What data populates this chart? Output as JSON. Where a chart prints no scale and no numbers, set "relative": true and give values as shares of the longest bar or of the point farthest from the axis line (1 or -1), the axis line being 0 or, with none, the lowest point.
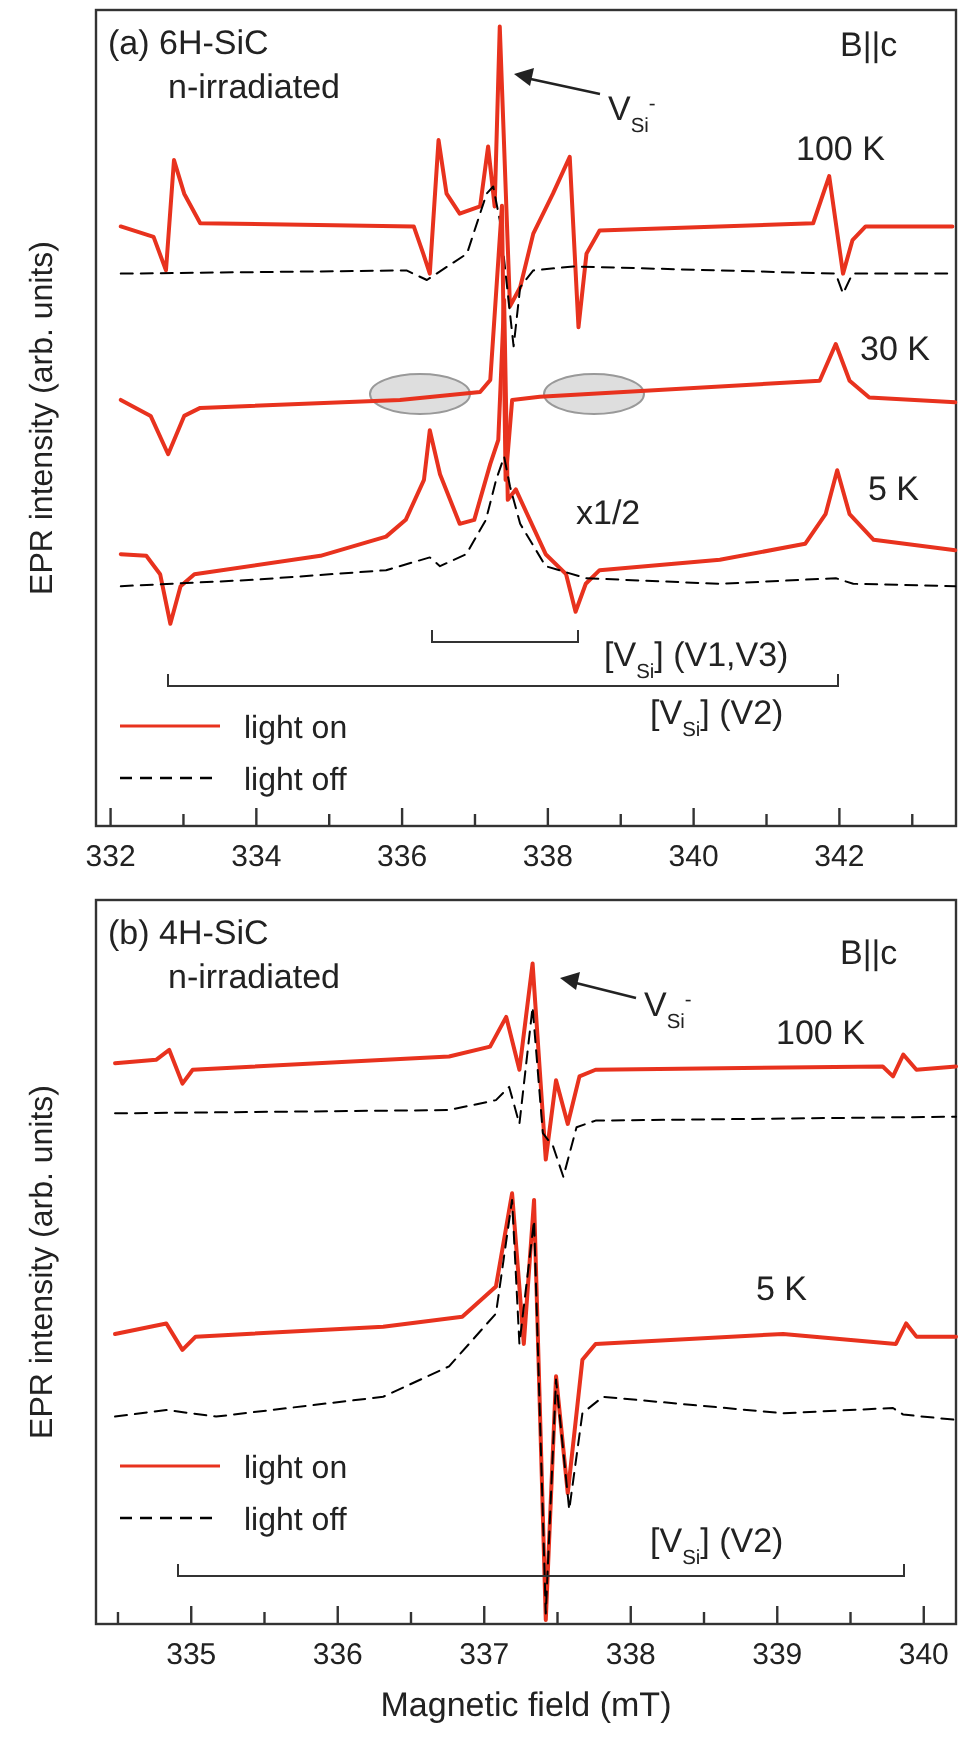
{
  "chart_data": [
    {
      "type": "line",
      "relative": true,
      "title": "(a) 6H-SiC n-irradiated",
      "ylabel": "EPR intensity (arb. units)",
      "legend": "bottom left",
      "xlim": [
        331.8,
        343.6
      ],
      "xticks": [
        332,
        {
          "value": 333,
          "label": null
        },
        334,
        {
          "value": 335,
          "label": null
        },
        336,
        {
          "value": 337,
          "label": null
        },
        338,
        {
          "value": 339,
          "label": null
        },
        340,
        {
          "value": 341,
          "label": null
        },
        342,
        {
          "value": 343,
          "label": null
        }
      ],
      "annotations": [
        "V$_{Si}$$^{-}$",
        "B||c",
        "100 K",
        "30 K",
        "5 K",
        "x1/2",
        "[V$_{Si}$] (V1,V3)",
        "[V$_{Si}$] (V2)"
      ],
      "series": [
        {
          "name": "light on",
          "color": "#e8321e",
          "line_style": "solid",
          "x": [
            332.14,
            332.59,
            332.76,
            332.87,
            333.01,
            333.23,
            336.16,
            336.29,
            336.38,
            336.5,
            336.61,
            336.79,
            337.07,
            337.18,
            337.27,
            337.34,
            337.48,
            337.62,
            337.8,
            338.07,
            338.3,
            338.42,
            338.53,
            338.71,
            341.64,
            341.86,
            342.05,
            342.18,
            342.36,
            343.55
          ],
          "values": [
            0.75,
            0.737,
            0.695,
            0.833,
            0.791,
            0.754,
            0.75,
            0.716,
            0.691,
            0.858,
            0.791,
            0.766,
            0.775,
            0.85,
            0.775,
            1.0,
            0.65,
            0.674,
            0.741,
            0.791,
            0.837,
            0.624,
            0.716,
            0.745,
            0.754,
            0.813,
            0.691,
            0.733,
            0.75,
            0.75
          ]
        },
        {
          "name": "light off",
          "color": "#000000",
          "line_style": "dashed",
          "x": [
            332.14,
            336.06,
            336.34,
            336.89,
            337.16,
            337.25,
            337.34,
            337.53,
            337.62,
            337.8,
            338.35,
            341.95,
            342.05,
            342.18,
            343.55
          ],
          "values": [
            0.691,
            0.695,
            0.683,
            0.716,
            0.791,
            0.8,
            0.758,
            0.6,
            0.674,
            0.695,
            0.7,
            0.691,
            0.666,
            0.691,
            0.691
          ]
        },
        {
          "color": "#e8321e",
          "line_style": "solid",
          "x": [
            332.14,
            332.55,
            332.79,
            333.01,
            333.23,
            335.97,
            337.07,
            337.21,
            337.37,
            337.42,
            337.51,
            337.89,
            341.73,
            341.95,
            342.14,
            342.41,
            343.59
          ],
          "values": [
            0.533,
            0.513,
            0.465,
            0.513,
            0.523,
            0.533,
            0.543,
            0.558,
            0.776,
            0.433,
            0.533,
            0.537,
            0.557,
            0.603,
            0.557,
            0.536,
            0.53
          ]
        },
        {
          "color": "#e8321e",
          "line_style": "solid",
          "x": [
            332.14,
            332.49,
            332.68,
            332.82,
            332.96,
            333.15,
            334.88,
            335.78,
            336.05,
            336.3,
            336.38,
            336.52,
            336.79,
            336.99,
            337.21,
            337.32,
            337.4,
            337.45,
            337.56,
            337.97,
            338.25,
            338.38,
            338.52,
            338.71,
            340.36,
            341.53,
            341.81,
            341.97,
            342.14,
            342.47,
            343.59
          ],
          "values": [
            0.34,
            0.338,
            0.315,
            0.253,
            0.3,
            0.315,
            0.338,
            0.362,
            0.383,
            0.433,
            0.495,
            0.44,
            0.378,
            0.383,
            0.453,
            0.483,
            0.658,
            0.408,
            0.421,
            0.34,
            0.315,
            0.268,
            0.303,
            0.32,
            0.333,
            0.353,
            0.39,
            0.445,
            0.39,
            0.358,
            0.345
          ]
        },
        {
          "color": "#000000",
          "line_style": "dashed",
          "x": [
            332.14,
            333.97,
            335.78,
            336.38,
            336.52,
            336.88,
            337.15,
            337.29,
            337.4,
            337.48,
            337.62,
            337.97,
            338.52,
            340.36,
            341.95,
            342.19,
            343.59
          ],
          "values": [
            0.3,
            0.308,
            0.32,
            0.336,
            0.325,
            0.34,
            0.383,
            0.433,
            0.462,
            0.425,
            0.378,
            0.325,
            0.31,
            0.303,
            0.31,
            0.303,
            0.3
          ]
        }
      ]
    },
    {
      "type": "line",
      "relative": true,
      "title": "(b) 4H-SiC n-irradiated",
      "ylabel": "EPR intensity (arb. units)",
      "xlabel": "Magnetic field (mT)",
      "legend": "bottom left",
      "xlim": [
        334.35,
        340.22
      ],
      "xticks": [
        {
          "value": 334.5,
          "label": null
        },
        335,
        {
          "value": 335.5,
          "label": null
        },
        336,
        {
          "value": 336.5,
          "label": null
        },
        337,
        {
          "value": 337.5,
          "label": null
        },
        338,
        {
          "value": 338.5,
          "label": null
        },
        339,
        {
          "value": 339.5,
          "label": null
        },
        340
      ],
      "annotations": [
        "V$_{Si}$$^{-}$",
        "B||c",
        "100 K",
        "5 K",
        "[V$_{Si}$] (V2)"
      ],
      "series": [
        {
          "name": "light on",
          "color": "#e8321e",
          "line_style": "solid",
          "x": [
            334.48,
            334.76,
            334.85,
            334.94,
            335.01,
            336.76,
            337.04,
            337.15,
            337.24,
            337.33,
            337.42,
            337.49,
            337.57,
            337.65,
            337.76,
            339.72,
            339.79,
            339.86,
            339.95,
            340.22
          ],
          "values": [
            0.849,
            0.854,
            0.869,
            0.818,
            0.839,
            0.859,
            0.874,
            0.919,
            0.839,
            1.0,
            0.703,
            0.823,
            0.757,
            0.829,
            0.839,
            0.844,
            0.829,
            0.862,
            0.839,
            0.844
          ]
        },
        {
          "name": "light off",
          "color": "#000000",
          "line_style": "dashed",
          "x": [
            334.48,
            336.76,
            337.08,
            337.17,
            337.24,
            337.33,
            337.4,
            337.47,
            337.54,
            337.63,
            337.76,
            340.22
          ],
          "values": [
            0.773,
            0.778,
            0.793,
            0.813,
            0.757,
            0.934,
            0.743,
            0.723,
            0.677,
            0.752,
            0.762,
            0.768
          ]
        },
        {
          "color": "#e8321e",
          "line_style": "solid",
          "x": [
            334.48,
            334.83,
            334.94,
            335.03,
            336.31,
            336.85,
            337.08,
            337.19,
            337.27,
            337.34,
            337.42,
            337.49,
            337.57,
            337.67,
            337.76,
            339.04,
            339.81,
            339.88,
            339.95,
            340.22
          ],
          "values": [
            0.439,
            0.455,
            0.415,
            0.435,
            0.45,
            0.465,
            0.511,
            0.652,
            0.424,
            0.642,
            0.006,
            0.375,
            0.198,
            0.4,
            0.424,
            0.439,
            0.424,
            0.455,
            0.435,
            0.435
          ]
        },
        {
          "color": "#000000",
          "line_style": "dashed",
          "x": [
            334.48,
            334.83,
            335.17,
            336.31,
            336.76,
            337.08,
            337.19,
            337.24,
            337.34,
            337.42,
            337.49,
            337.58,
            337.67,
            337.81,
            339.04,
            339.79,
            339.86,
            340.22
          ],
          "values": [
            0.314,
            0.324,
            0.314,
            0.344,
            0.39,
            0.47,
            0.642,
            0.424,
            0.611,
            0.016,
            0.37,
            0.173,
            0.319,
            0.344,
            0.319,
            0.327,
            0.317,
            0.309
          ]
        }
      ]
    }
  ]
}
